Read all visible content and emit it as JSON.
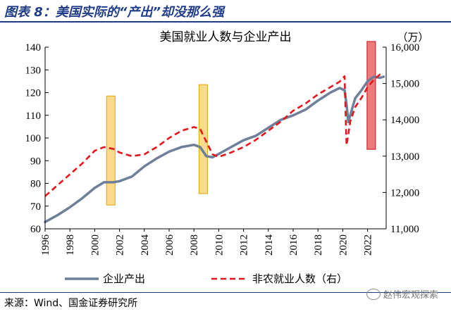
{
  "figure_title": "图表 8：美国实际的“产出”却没那么强",
  "source": "来源：Wind、国金证券研究所",
  "watermark": "赵伟宏观探索",
  "colors": {
    "output": "#6f7f99",
    "payrolls": "#e8141c",
    "yellow_band": "#f7c84a",
    "red_band": "#ea5a5a",
    "title_blue": "#1f3c88"
  },
  "chart_data": {
    "type": "line",
    "title": "美国就业人数与企业产出",
    "right_unit": "（万）",
    "x_range": [
      1996,
      2023.5
    ],
    "x_ticks": [
      "1996",
      "1998",
      "2000",
      "2002",
      "2004",
      "2006",
      "2008",
      "2010",
      "2012",
      "2014",
      "2016",
      "2018",
      "2020",
      "2022"
    ],
    "ylim_left": [
      60,
      140
    ],
    "yticks_left": [
      "60",
      "70",
      "80",
      "90",
      "100",
      "110",
      "120",
      "130",
      "140"
    ],
    "ylim_right": [
      11000,
      16000
    ],
    "yticks_right": [
      "11,000",
      "12,000",
      "13,000",
      "14,000",
      "15,000",
      "16,000"
    ],
    "grid": false,
    "legend_position": "bottom",
    "highlight_bands": [
      {
        "x_center": 2001.3,
        "y_bottom": 70.5,
        "y_top": 118.5,
        "color": "yellow"
      },
      {
        "x_center": 2008.75,
        "y_bottom": 75.5,
        "y_top": 123.5,
        "color": "yellow"
      },
      {
        "x_center": 2022.3,
        "y_bottom": 95,
        "y_top": 142.5,
        "color": "red"
      }
    ],
    "series": [
      {
        "name": "企业产出",
        "axis": "left",
        "x": [
          1996,
          1997,
          1998,
          1999,
          2000,
          2000.75,
          2001.5,
          2002,
          2003,
          2004,
          2005,
          2006,
          2007,
          2008,
          2008.5,
          2009,
          2009.5,
          2010,
          2011,
          2012,
          2013,
          2014,
          2015,
          2016,
          2017,
          2018,
          2019,
          2019.75,
          2020.15,
          2020.3,
          2020.45,
          2020.6,
          2021,
          2021.5,
          2022,
          2022.5,
          2023,
          2023.3
        ],
        "y": [
          63,
          66,
          69.5,
          73.5,
          78,
          80.5,
          80.5,
          81,
          83,
          87.5,
          91,
          94,
          96,
          97,
          96,
          92,
          91.5,
          93,
          96,
          99,
          101,
          104.5,
          108,
          110,
          112.5,
          116.5,
          120,
          122,
          121,
          115,
          107,
          110,
          117.5,
          121,
          125,
          127,
          126.5,
          127
        ]
      },
      {
        "name": "非农就业人数（右）",
        "axis": "right",
        "x": [
          1996,
          1997,
          1998,
          1999,
          2000,
          2000.75,
          2001.5,
          2002,
          2003,
          2004,
          2005,
          2006,
          2007,
          2008,
          2008.5,
          2009,
          2009.5,
          2010,
          2011,
          2012,
          2013,
          2014,
          2015,
          2016,
          2017,
          2018,
          2019,
          2019.75,
          2020.15,
          2020.3,
          2020.45,
          2020.6,
          2021,
          2021.5,
          2022,
          2022.5,
          2023,
          2023.3
        ],
        "y": [
          11900,
          12200,
          12500,
          12800,
          13150,
          13250,
          13200,
          13100,
          13000,
          13050,
          13250,
          13500,
          13700,
          13800,
          13750,
          13400,
          13050,
          12980,
          13100,
          13250,
          13450,
          13700,
          13950,
          14250,
          14450,
          14700,
          14900,
          15050,
          15200,
          13300,
          13600,
          13950,
          14350,
          14600,
          14900,
          15100,
          15250,
          15270
        ]
      }
    ]
  }
}
